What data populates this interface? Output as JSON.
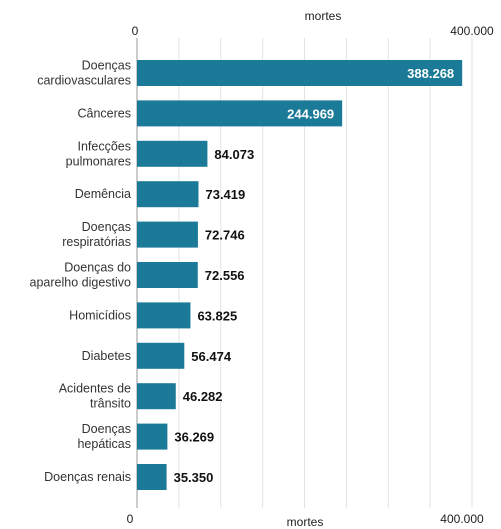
{
  "chart_data": {
    "type": "bar",
    "orientation": "horizontal",
    "xlabel": "mortes",
    "xlim": [
      0,
      400000
    ],
    "x_ticks": [
      "0",
      "400.000"
    ],
    "grid": true,
    "bar_color": "#1a7a98",
    "categories": [
      [
        "Doenças",
        "cardiovasculares"
      ],
      [
        "Cânceres"
      ],
      [
        "Infecções",
        "pulmonares"
      ],
      [
        "Demência"
      ],
      [
        "Doenças",
        "respiratórias"
      ],
      [
        "Doenças do",
        "aparelho digestivo"
      ],
      [
        "Homicídios"
      ],
      [
        "Diabetes"
      ],
      [
        "Acidentes de",
        "trânsito"
      ],
      [
        "Doenças",
        "hepáticas"
      ],
      [
        "Doenças renais"
      ]
    ],
    "values": [
      388268,
      244969,
      84073,
      73419,
      72746,
      72556,
      63825,
      56474,
      46282,
      36269,
      35350
    ],
    "value_labels": [
      "388.268",
      "244.969",
      "84.073",
      "73.419",
      "72.746",
      "72.556",
      "63.825",
      "56.474",
      "46.282",
      "36.269",
      "35.350"
    ]
  }
}
